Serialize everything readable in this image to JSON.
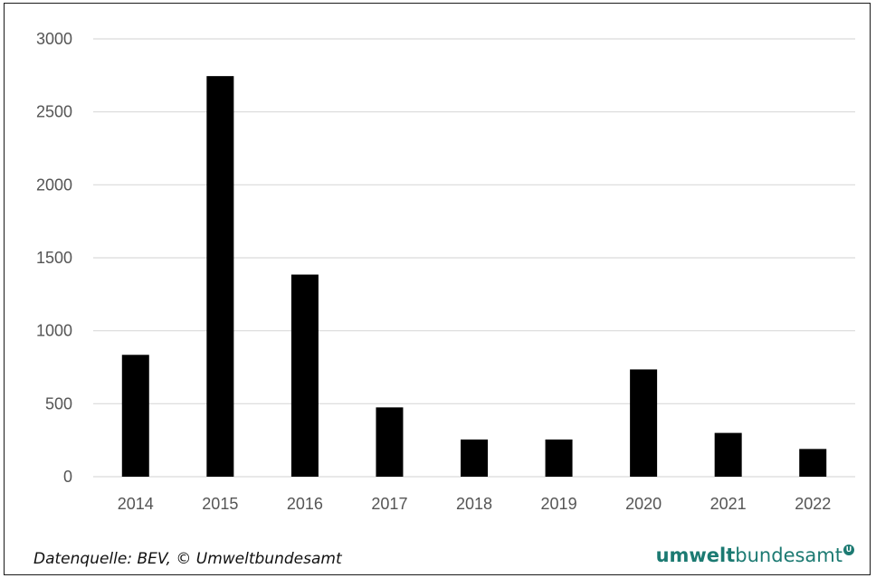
{
  "chart_data": {
    "type": "bar",
    "categories": [
      "2014",
      "2015",
      "2016",
      "2017",
      "2018",
      "2019",
      "2020",
      "2021",
      "2022"
    ],
    "values": [
      835,
      2745,
      1385,
      475,
      255,
      255,
      735,
      300,
      190
    ],
    "ylim": [
      0,
      3000
    ],
    "yticks": [
      0,
      500,
      1000,
      1500,
      2000,
      2500,
      3000
    ],
    "grid": true,
    "bar_color": "#000000",
    "grid_color": "#d9d9d9"
  },
  "footer": {
    "source": "Datenquelle: BEV, © Umweltbundesamt",
    "brand_bold": "umwelt",
    "brand_regular": "bundesamt",
    "brand_mark": "U"
  },
  "colors": {
    "brand": "#1c7a72"
  }
}
